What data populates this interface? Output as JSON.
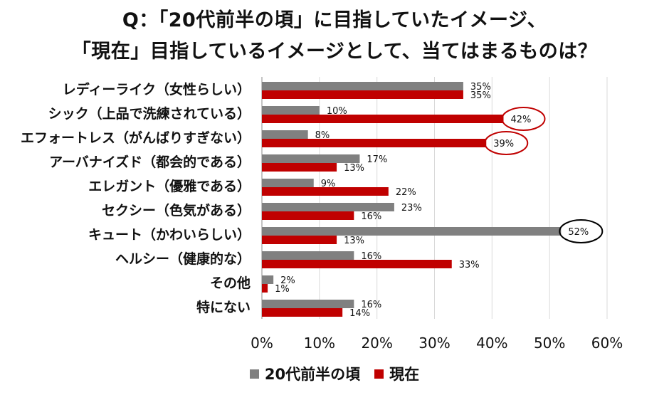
{
  "title": {
    "line1": "Q：「20代前半の頃」に目指していたイメージ、",
    "line2": "「現在」目指しているイメージとして、当てはまるものは？"
  },
  "colors": {
    "past": "#808080",
    "now": "#c00000",
    "grid": "#d9d9d9",
    "axis": "#888888"
  },
  "legend": [
    {
      "name": "20代前半の頃",
      "color": "#808080"
    },
    {
      "name": "現在",
      "color": "#c00000"
    }
  ],
  "chart_data": {
    "type": "bar",
    "orientation": "horizontal",
    "categories": [
      "レディーライク（女性らしい）",
      "シック（上品で洗練されている）",
      "エフォートレス（がんばりすぎない）",
      "アーバナイズド（都会的である）",
      "エレガント（優雅である）",
      "セクシー（色気がある）",
      "キュート（かわいらしい）",
      "ヘルシー（健康的な）",
      "その他",
      "特にない"
    ],
    "series": [
      {
        "name": "20代前半の頃",
        "values": [
          35,
          10,
          8,
          17,
          9,
          23,
          52,
          16,
          2,
          16
        ]
      },
      {
        "name": "現在",
        "values": [
          35,
          42,
          39,
          13,
          22,
          16,
          13,
          33,
          1,
          14
        ]
      }
    ],
    "data_labels": {
      "20代前半の頃": [
        "35%",
        "10%",
        "8%",
        "17%",
        "9%",
        "23%",
        "52%",
        "16%",
        "2%",
        "16%"
      ],
      "現在": [
        "35%",
        "42%",
        "39%",
        "13%",
        "22%",
        "16%",
        "13%",
        "33%",
        "1%",
        "14%"
      ]
    },
    "xlim": [
      0,
      60
    ],
    "xticks": [
      "0%",
      "10%",
      "20%",
      "30%",
      "40%",
      "50%",
      "60%"
    ],
    "grid": true,
    "legend_position": "bottom",
    "highlighted": [
      {
        "category": "シック（上品で洗練されている）",
        "series": "現在",
        "color": "#c00000"
      },
      {
        "category": "エフォートレス（がんばりすぎない）",
        "series": "現在",
        "color": "#c00000"
      },
      {
        "category": "キュート（かわいらしい）",
        "series": "20代前半の頃",
        "color": "#000000"
      }
    ]
  }
}
